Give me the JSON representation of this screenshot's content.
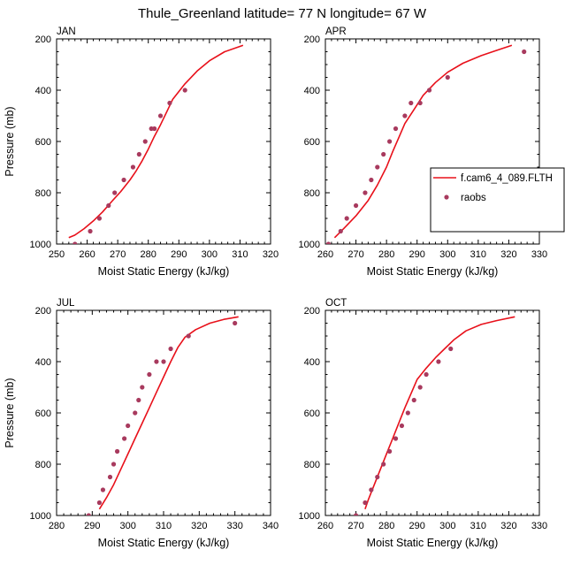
{
  "title": "Thule_Greenland  latitude= 77 N longitude= 67 W",
  "colors": {
    "model": "#e8101a",
    "obs": "#a83a5e"
  },
  "legend": {
    "model_label": "f.cam6_4_089.FLTH",
    "obs_label": "raobs"
  },
  "chart_data": [
    {
      "type": "line",
      "panel_label": "JAN",
      "xlabel": "Moist Static Energy (kJ/kg)",
      "ylabel": "Pressure (mb)",
      "xlim": [
        250,
        320
      ],
      "ylim": [
        1000,
        200
      ],
      "xticks": [
        250,
        260,
        270,
        280,
        290,
        300,
        310,
        320
      ],
      "yticks": [
        200,
        400,
        600,
        800,
        1000
      ],
      "series": [
        {
          "name": "f.cam6_4_089.FLTH",
          "style": "line",
          "x": [
            254,
            256,
            259,
            262,
            265,
            268,
            271,
            274,
            276,
            278,
            280,
            282,
            284,
            286,
            288,
            292,
            296,
            300,
            305,
            311
          ],
          "y": [
            975,
            965,
            940,
            910,
            875,
            835,
            795,
            750,
            715,
            675,
            630,
            580,
            535,
            485,
            435,
            375,
            325,
            285,
            250,
            225
          ]
        },
        {
          "name": "raobs",
          "style": "markers",
          "x": [
            256,
            261,
            264,
            267,
            269,
            272,
            275,
            277,
            279,
            281,
            282,
            284,
            287,
            292
          ],
          "y": [
            1000,
            950,
            900,
            850,
            800,
            750,
            700,
            650,
            600,
            550,
            550,
            500,
            450,
            400
          ]
        }
      ]
    },
    {
      "type": "line",
      "panel_label": "APR",
      "xlabel": "Moist Static Energy (kJ/kg)",
      "ylabel": "",
      "xlim": [
        260,
        330
      ],
      "ylim": [
        1000,
        200
      ],
      "xticks": [
        260,
        270,
        280,
        290,
        300,
        310,
        320,
        330
      ],
      "yticks": [
        200,
        400,
        600,
        800,
        1000
      ],
      "series": [
        {
          "name": "f.cam6_4_089.FLTH",
          "style": "line",
          "x": [
            263,
            266,
            270,
            274,
            277,
            280,
            282,
            284,
            286,
            289,
            292,
            296,
            300,
            305,
            311,
            316,
            321
          ],
          "y": [
            975,
            940,
            890,
            830,
            770,
            700,
            640,
            585,
            530,
            475,
            420,
            370,
            330,
            295,
            265,
            245,
            225
          ]
        },
        {
          "name": "raobs",
          "style": "markers",
          "x": [
            261,
            265,
            267,
            270,
            273,
            275,
            277,
            279,
            281,
            283,
            286,
            288,
            291,
            294,
            300,
            325
          ],
          "y": [
            1000,
            950,
            900,
            850,
            800,
            750,
            700,
            650,
            600,
            550,
            500,
            450,
            450,
            400,
            350,
            250
          ]
        }
      ]
    },
    {
      "type": "line",
      "panel_label": "JUL",
      "xlabel": "Moist Static Energy (kJ/kg)",
      "ylabel": "Pressure (mb)",
      "xlim": [
        280,
        340
      ],
      "ylim": [
        1000,
        200
      ],
      "xticks": [
        280,
        290,
        300,
        310,
        320,
        330,
        340
      ],
      "yticks": [
        200,
        400,
        600,
        800,
        1000
      ],
      "series": [
        {
          "name": "f.cam6_4_089.FLTH",
          "style": "line",
          "x": [
            292,
            294,
            296,
            298,
            300,
            302,
            304,
            306,
            308,
            310,
            312,
            314,
            316,
            319,
            323,
            327,
            331
          ],
          "y": [
            975,
            930,
            880,
            820,
            760,
            700,
            640,
            580,
            520,
            460,
            400,
            345,
            305,
            275,
            250,
            235,
            225
          ]
        },
        {
          "name": "raobs",
          "style": "markers",
          "x": [
            289,
            292,
            293,
            295,
            296,
            297,
            299,
            300,
            302,
            303,
            304,
            306,
            308,
            310,
            312,
            317,
            330
          ],
          "y": [
            1000,
            950,
            900,
            850,
            800,
            750,
            700,
            650,
            600,
            550,
            500,
            450,
            400,
            400,
            350,
            300,
            250
          ]
        }
      ]
    },
    {
      "type": "line",
      "panel_label": "OCT",
      "xlabel": "Moist Static Energy (kJ/kg)",
      "ylabel": "",
      "xlim": [
        260,
        330
      ],
      "ylim": [
        1000,
        200
      ],
      "xticks": [
        260,
        270,
        280,
        290,
        300,
        310,
        320,
        330
      ],
      "yticks": [
        200,
        400,
        600,
        800,
        1000
      ],
      "series": [
        {
          "name": "f.cam6_4_089.FLTH",
          "style": "line",
          "x": [
            273,
            274,
            276,
            278,
            280,
            282,
            284,
            286,
            288,
            290,
            293,
            296,
            299,
            302,
            306,
            311,
            316,
            322
          ],
          "y": [
            975,
            940,
            880,
            820,
            760,
            700,
            640,
            580,
            525,
            470,
            425,
            385,
            350,
            315,
            280,
            255,
            240,
            225
          ]
        },
        {
          "name": "raobs",
          "style": "markers",
          "x": [
            270,
            273,
            275,
            277,
            279,
            281,
            283,
            285,
            287,
            289,
            291,
            293,
            297,
            301
          ],
          "y": [
            1000,
            950,
            900,
            850,
            800,
            750,
            700,
            650,
            600,
            550,
            500,
            450,
            400,
            350
          ]
        }
      ]
    }
  ]
}
